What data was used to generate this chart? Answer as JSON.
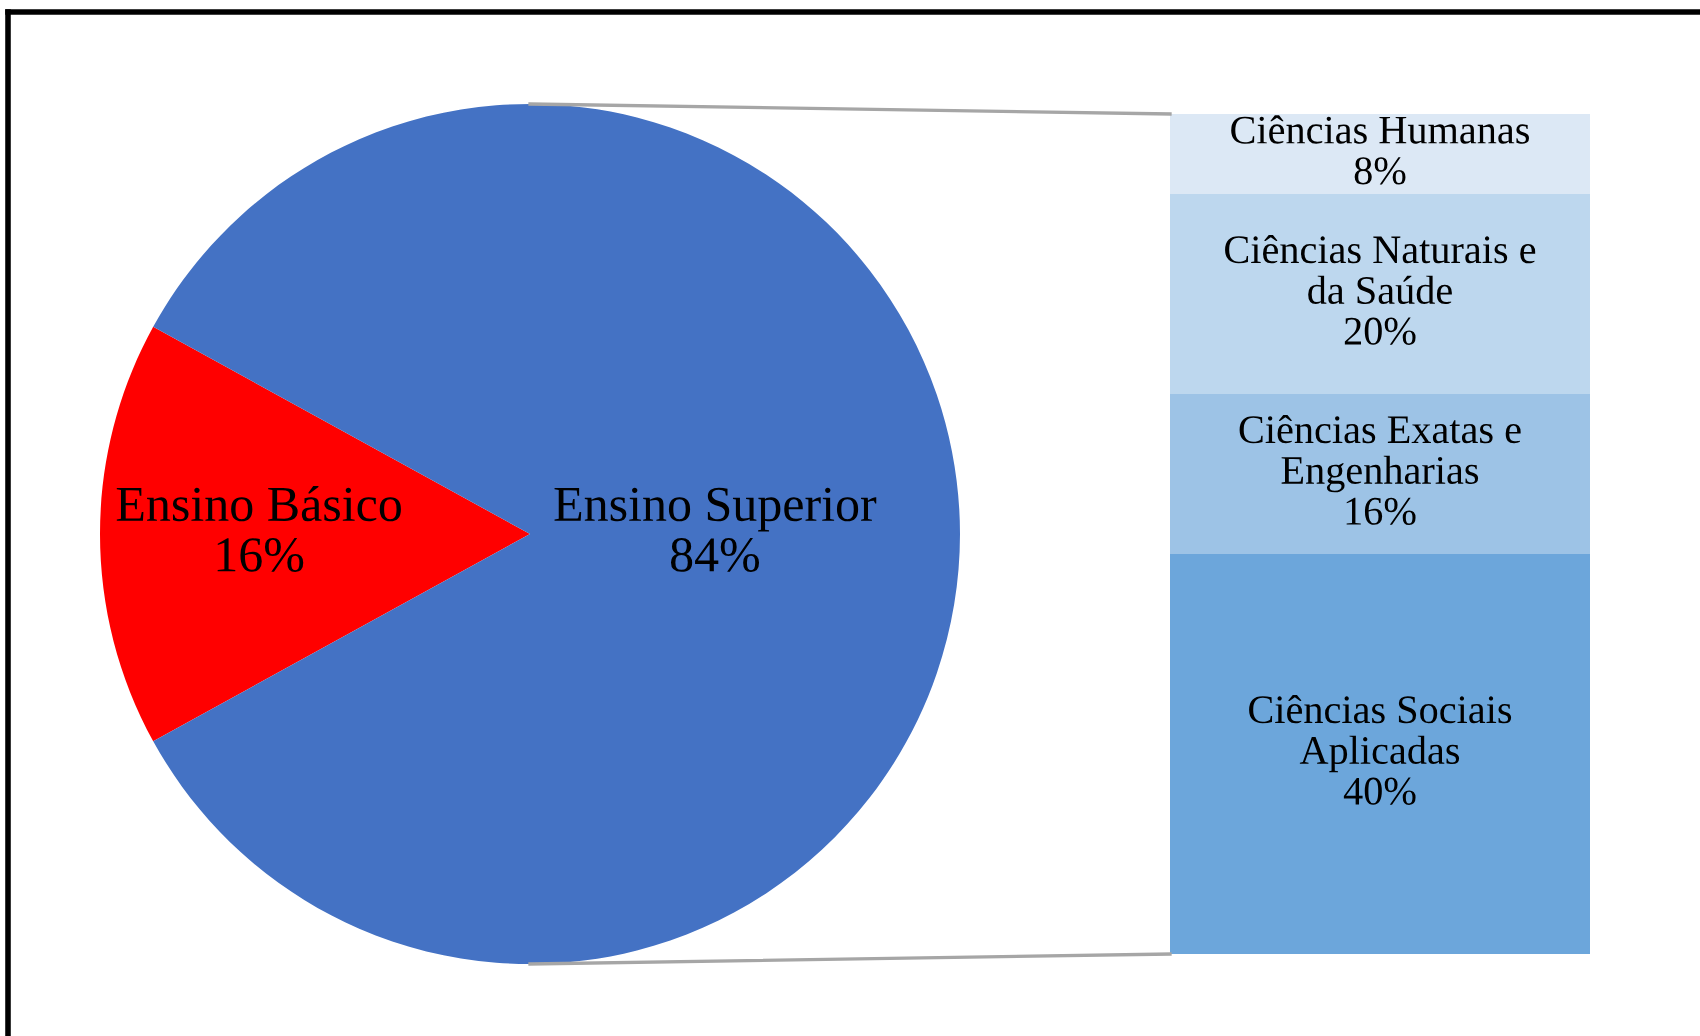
{
  "chart_data": [
    {
      "type": "pie",
      "categories": [
        "Ensino Básico",
        "Ensino Superior"
      ],
      "values": [
        16,
        84
      ],
      "colors": [
        "#ff0000",
        "#4472c4"
      ],
      "value_labels": [
        "16%",
        "84%"
      ]
    },
    {
      "type": "bar",
      "stacked": true,
      "categories": [
        null
      ],
      "tick_labels": false,
      "series": [
        {
          "name": "Ciências Sociais Aplicadas",
          "color": "#6ca6db",
          "values": [
            40
          ],
          "value_labels": [
            "40%"
          ]
        },
        {
          "name": "Ciências Exatas e Engenharias",
          "color": "#9dc3e6",
          "values": [
            16
          ],
          "value_labels": [
            "16%"
          ]
        },
        {
          "name": "Ciências Naturais e da Saúde",
          "color": "#bdd7ee",
          "values": [
            20
          ],
          "value_labels": [
            "20%"
          ]
        },
        {
          "name": "Ciências Humanas",
          "color": "#dce8f5",
          "values": [
            8
          ],
          "value_labels": [
            "8%"
          ]
        }
      ]
    }
  ]
}
